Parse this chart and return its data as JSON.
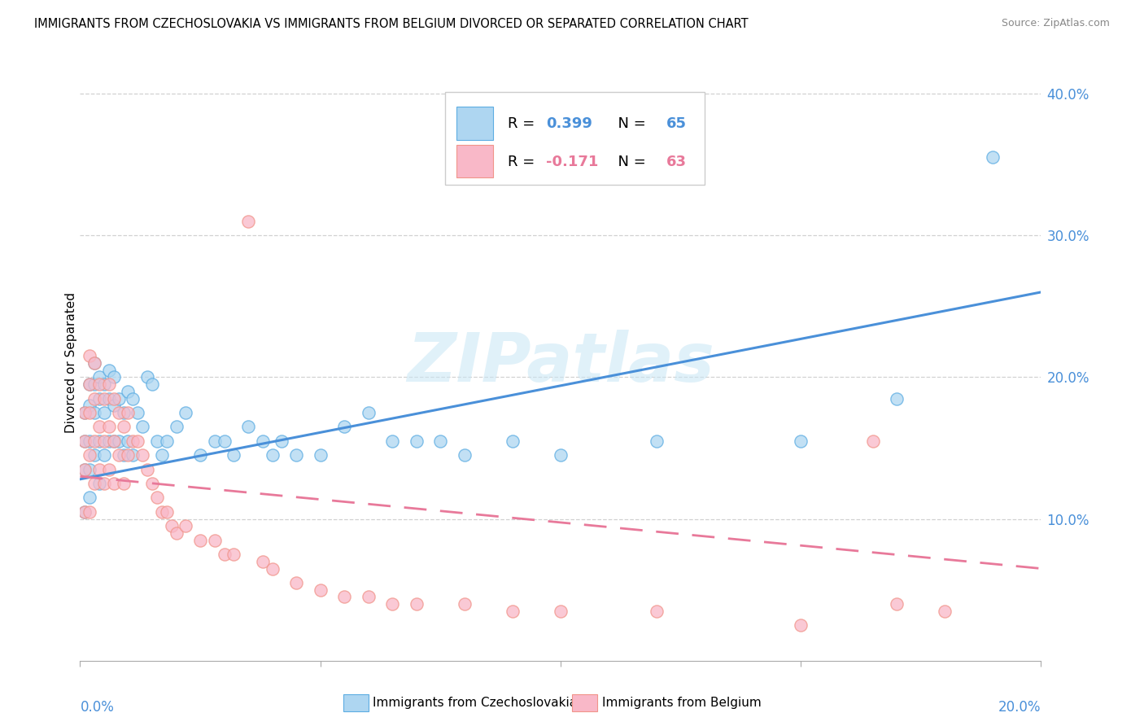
{
  "title": "IMMIGRANTS FROM CZECHOSLOVAKIA VS IMMIGRANTS FROM BELGIUM DIVORCED OR SEPARATED CORRELATION CHART",
  "source": "Source: ZipAtlas.com",
  "ylabel": "Divorced or Separated",
  "xlim": [
    0.0,
    0.2
  ],
  "ylim": [
    0.0,
    0.42
  ],
  "yticks": [
    0.0,
    0.1,
    0.2,
    0.3,
    0.4
  ],
  "ytick_labels": [
    "",
    "10.0%",
    "20.0%",
    "30.0%",
    "40.0%"
  ],
  "xticks": [
    0.0,
    0.05,
    0.1,
    0.15,
    0.2
  ],
  "R_blue": "0.399",
  "N_blue": "65",
  "R_pink": "-0.171",
  "N_pink": "63",
  "blue_fill": "#AED6F1",
  "pink_fill": "#F9B8C8",
  "blue_edge": "#5DADE2",
  "pink_edge": "#F1948A",
  "blue_line": "#4A90D9",
  "pink_line": "#E8799A",
  "legend_label_blue": "Immigrants from Czechoslovakia",
  "legend_label_pink": "Immigrants from Belgium",
  "watermark": "ZIPatlas",
  "blue_trend_x0": 0.0,
  "blue_trend_y0": 0.128,
  "blue_trend_x1": 0.2,
  "blue_trend_y1": 0.26,
  "pink_trend_x0": 0.0,
  "pink_trend_y0": 0.13,
  "pink_trend_x1": 0.2,
  "pink_trend_y1": 0.065,
  "blue_scatter_x": [
    0.001,
    0.001,
    0.001,
    0.001,
    0.002,
    0.002,
    0.002,
    0.002,
    0.002,
    0.003,
    0.003,
    0.003,
    0.003,
    0.004,
    0.004,
    0.004,
    0.004,
    0.005,
    0.005,
    0.005,
    0.006,
    0.006,
    0.006,
    0.007,
    0.007,
    0.007,
    0.008,
    0.008,
    0.009,
    0.009,
    0.01,
    0.01,
    0.011,
    0.011,
    0.012,
    0.013,
    0.014,
    0.015,
    0.016,
    0.017,
    0.018,
    0.02,
    0.022,
    0.025,
    0.028,
    0.03,
    0.032,
    0.035,
    0.038,
    0.04,
    0.042,
    0.045,
    0.05,
    0.055,
    0.06,
    0.065,
    0.07,
    0.075,
    0.08,
    0.09,
    0.1,
    0.12,
    0.15,
    0.17,
    0.19
  ],
  "blue_scatter_y": [
    0.175,
    0.155,
    0.135,
    0.105,
    0.195,
    0.18,
    0.155,
    0.135,
    0.115,
    0.21,
    0.195,
    0.175,
    0.145,
    0.2,
    0.185,
    0.155,
    0.125,
    0.195,
    0.175,
    0.145,
    0.205,
    0.185,
    0.155,
    0.2,
    0.18,
    0.155,
    0.185,
    0.155,
    0.175,
    0.145,
    0.19,
    0.155,
    0.185,
    0.145,
    0.175,
    0.165,
    0.2,
    0.195,
    0.155,
    0.145,
    0.155,
    0.165,
    0.175,
    0.145,
    0.155,
    0.155,
    0.145,
    0.165,
    0.155,
    0.145,
    0.155,
    0.145,
    0.145,
    0.165,
    0.175,
    0.155,
    0.155,
    0.155,
    0.145,
    0.155,
    0.145,
    0.155,
    0.155,
    0.185,
    0.355
  ],
  "pink_scatter_x": [
    0.001,
    0.001,
    0.001,
    0.001,
    0.002,
    0.002,
    0.002,
    0.002,
    0.002,
    0.003,
    0.003,
    0.003,
    0.003,
    0.004,
    0.004,
    0.004,
    0.005,
    0.005,
    0.005,
    0.006,
    0.006,
    0.006,
    0.007,
    0.007,
    0.007,
    0.008,
    0.008,
    0.009,
    0.009,
    0.01,
    0.01,
    0.011,
    0.012,
    0.013,
    0.014,
    0.015,
    0.016,
    0.017,
    0.018,
    0.019,
    0.02,
    0.022,
    0.025,
    0.028,
    0.03,
    0.032,
    0.035,
    0.038,
    0.04,
    0.045,
    0.05,
    0.055,
    0.06,
    0.065,
    0.07,
    0.08,
    0.09,
    0.1,
    0.12,
    0.15,
    0.165,
    0.17,
    0.18
  ],
  "pink_scatter_y": [
    0.175,
    0.155,
    0.135,
    0.105,
    0.215,
    0.195,
    0.175,
    0.145,
    0.105,
    0.21,
    0.185,
    0.155,
    0.125,
    0.195,
    0.165,
    0.135,
    0.185,
    0.155,
    0.125,
    0.195,
    0.165,
    0.135,
    0.185,
    0.155,
    0.125,
    0.175,
    0.145,
    0.165,
    0.125,
    0.175,
    0.145,
    0.155,
    0.155,
    0.145,
    0.135,
    0.125,
    0.115,
    0.105,
    0.105,
    0.095,
    0.09,
    0.095,
    0.085,
    0.085,
    0.075,
    0.075,
    0.31,
    0.07,
    0.065,
    0.055,
    0.05,
    0.045,
    0.045,
    0.04,
    0.04,
    0.04,
    0.035,
    0.035,
    0.035,
    0.025,
    0.155,
    0.04,
    0.035
  ]
}
